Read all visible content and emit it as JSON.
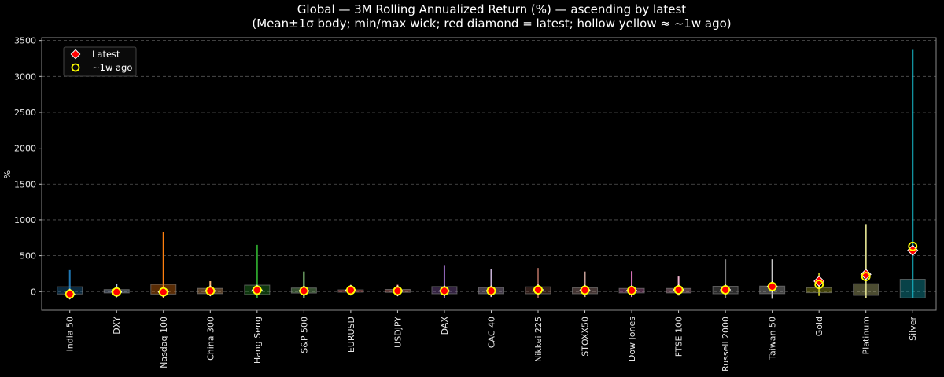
{
  "chart_data": {
    "type": "candlestick-range",
    "title": "Global — 3M Rolling Annualized Return (%) — ascending by latest",
    "subtitle": "(Mean±1σ body; min/max wick; red diamond = latest; hollow yellow ≈ ~1w ago)",
    "xlabel": "",
    "ylabel": "%",
    "ylim": [
      -260,
      3540
    ],
    "yticks": [
      0,
      500,
      1000,
      1500,
      2000,
      2500,
      3000,
      3500
    ],
    "grid": "y dashed",
    "legend": {
      "placement": "top-left",
      "entries": [
        "Latest",
        "~1w ago"
      ]
    },
    "colors": {
      "latest": "#ff0000",
      "week_ago": "#ffff00",
      "background": "#000000"
    },
    "series": [
      {
        "category": "India 50",
        "color": "#1f77b4",
        "mean": 17,
        "sd": 50,
        "min": -40,
        "max": 300,
        "latest": -35,
        "week_ago": -35
      },
      {
        "category": "DXY",
        "color": "#aec7e8",
        "mean": 5,
        "sd": 23,
        "min": -30,
        "max": 110,
        "latest": -5,
        "week_ago": -5
      },
      {
        "category": "Nasdaq 100",
        "color": "#ff7f0e",
        "mean": 33,
        "sd": 67,
        "min": -85,
        "max": 835,
        "latest": -5,
        "week_ago": -5
      },
      {
        "category": "China 300",
        "color": "#ffbb78",
        "mean": 8,
        "sd": 37,
        "min": -55,
        "max": 145,
        "latest": 10,
        "week_ago": 10
      },
      {
        "category": "Hang Seng",
        "color": "#2ca02c",
        "mean": 25,
        "sd": 65,
        "min": -85,
        "max": 650,
        "latest": 20,
        "week_ago": 20
      },
      {
        "category": "S&P 500",
        "color": "#98df8a",
        "mean": 15,
        "sd": 35,
        "min": -85,
        "max": 280,
        "latest": 10,
        "week_ago": 10
      },
      {
        "category": "EURUSD",
        "color": "#d62728",
        "mean": 8,
        "sd": 16,
        "min": -40,
        "max": 90,
        "latest": 20,
        "week_ago": 20
      },
      {
        "category": "USDJPY",
        "color": "#ff9896",
        "mean": 10,
        "sd": 20,
        "min": -40,
        "max": 95,
        "latest": 10,
        "week_ago": 10
      },
      {
        "category": "DAX",
        "color": "#9467bd",
        "mean": 20,
        "sd": 50,
        "min": -85,
        "max": 360,
        "latest": 10,
        "week_ago": 10
      },
      {
        "category": "CAC 40",
        "color": "#c5b0d5",
        "mean": 14,
        "sd": 44,
        "min": -75,
        "max": 310,
        "latest": 10,
        "week_ago": 10
      },
      {
        "category": "Nikkei 225",
        "color": "#8c564b",
        "mean": 18,
        "sd": 48,
        "min": -90,
        "max": 330,
        "latest": 25,
        "week_ago": 25
      },
      {
        "category": "STOXX50",
        "color": "#c49c94",
        "mean": 12,
        "sd": 42,
        "min": -75,
        "max": 280,
        "latest": 20,
        "week_ago": 20
      },
      {
        "category": "Dow Jones",
        "color": "#e377c2",
        "mean": 13,
        "sd": 31,
        "min": -75,
        "max": 285,
        "latest": 15,
        "week_ago": 15
      },
      {
        "category": "FTSE 100",
        "color": "#f7b6d2",
        "mean": 13,
        "sd": 31,
        "min": -55,
        "max": 210,
        "latest": 25,
        "week_ago": 25
      },
      {
        "category": "Russell 2000",
        "color": "#7f7f7f",
        "mean": 22,
        "sd": 52,
        "min": -90,
        "max": 450,
        "latest": 25,
        "week_ago": 25
      },
      {
        "category": "Taiwan 50",
        "color": "#c7c7c7",
        "mean": 24,
        "sd": 53,
        "min": -100,
        "max": 450,
        "latest": 70,
        "week_ago": 70
      },
      {
        "category": "Gold",
        "color": "#bcbd22",
        "mean": 20,
        "sd": 35,
        "min": -60,
        "max": 260,
        "latest": 145,
        "week_ago": 100
      },
      {
        "category": "Platinum",
        "color": "#dbdb8d",
        "mean": 29,
        "sd": 81,
        "min": -90,
        "max": 940,
        "latest": 240,
        "week_ago": 210
      },
      {
        "category": "Silver",
        "color": "#17becf",
        "mean": 42,
        "sd": 130,
        "min": -88,
        "max": 3370,
        "latest": 575,
        "week_ago": 630
      }
    ]
  }
}
